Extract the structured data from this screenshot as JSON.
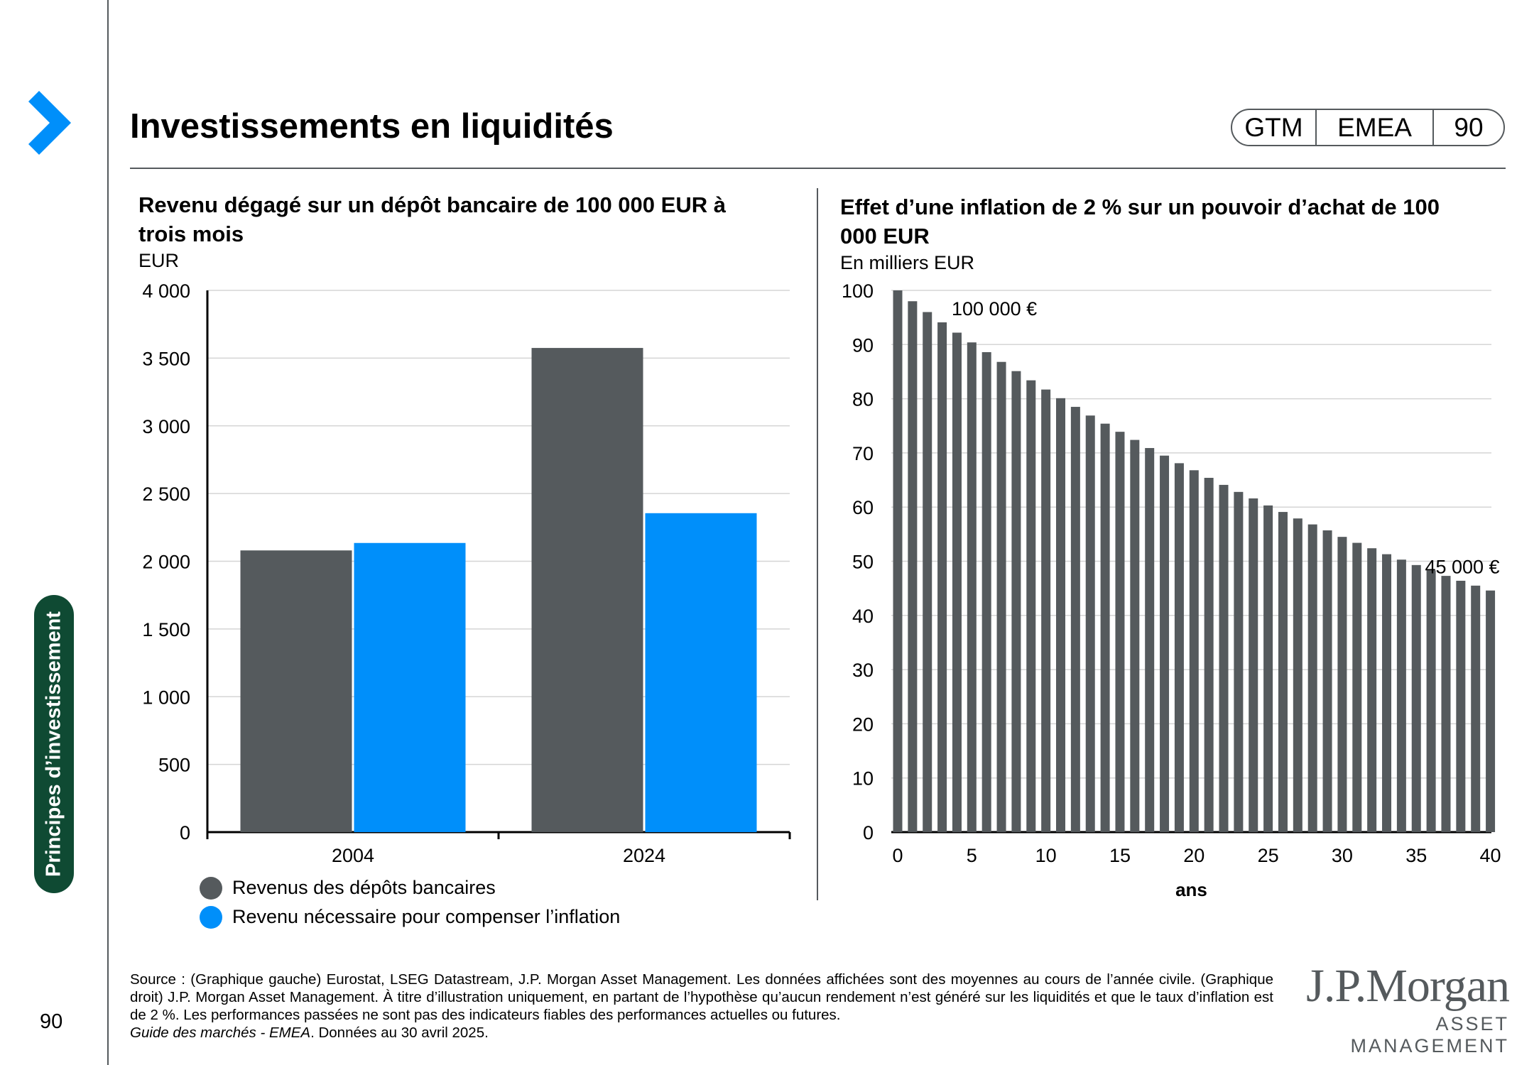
{
  "page": {
    "title": "Investissements en liquidités",
    "badge": [
      "GTM",
      "EMEA",
      "90"
    ],
    "side_tab": "Principes d’investissement",
    "page_number": "90"
  },
  "footnote": {
    "text": "Source : (Graphique gauche) Eurostat, LSEG Datastream, J.P. Morgan Asset Management. Les données affichées sont des moyennes au cours de l’année civile. (Graphique droit) J.P. Morgan Asset Management. À titre d’illustration uniquement, en partant de l’hypothèse qu’aucun rendement n’est généré sur les liquidités et que le taux d’inflation est de 2 %. Les performances passées ne sont pas des indicateurs fiables des performances actuelles ou futures.",
    "italic": "Guide des marchés - EMEA",
    "date": ". Données au 30 avril 2025."
  },
  "logo": {
    "main": "J.P.Morgan",
    "sub": "ASSET MANAGEMENT"
  },
  "colors": {
    "dark_gray": "#555a5d",
    "blue": "#008ffa",
    "green": "#0f4a33"
  },
  "chart_data": [
    {
      "type": "bar",
      "title": "Revenu dégagé sur un dépôt bancaire de 100 000 EUR à trois mois",
      "ylabel": "EUR",
      "xlabel": "",
      "categories": [
        "2004",
        "2024"
      ],
      "series": [
        {
          "name": "Revenus des dépôts bancaires",
          "color": "#555a5d",
          "values": [
            2080,
            3575
          ]
        },
        {
          "name": "Revenu nécessaire pour compenser l’inflation",
          "color": "#008ffa",
          "values": [
            2135,
            2355
          ]
        }
      ],
      "ylim": [
        0,
        4000
      ],
      "yticks": [
        0,
        500,
        1000,
        1500,
        2000,
        2500,
        3000,
        3500,
        4000
      ],
      "ytick_labels": [
        "0",
        "500",
        "1 000",
        "1 500",
        "2 000",
        "2 500",
        "3 000",
        "3 500",
        "4 000"
      ],
      "legend": "bottom-left",
      "grid": true
    },
    {
      "type": "bar",
      "title": "Effet d’une inflation de 2 % sur un pouvoir d’achat de 100 000 EUR",
      "ylabel": "En milliers EUR",
      "xlabel": "ans",
      "x": [
        0,
        1,
        2,
        3,
        4,
        5,
        6,
        7,
        8,
        9,
        10,
        11,
        12,
        13,
        14,
        15,
        16,
        17,
        18,
        19,
        20,
        21,
        22,
        23,
        24,
        25,
        26,
        27,
        28,
        29,
        30,
        31,
        32,
        33,
        34,
        35,
        36,
        37,
        38,
        39,
        40
      ],
      "values": [
        100,
        98.0,
        96.0,
        94.1,
        92.2,
        90.4,
        88.6,
        86.8,
        85.1,
        83.4,
        81.7,
        80.1,
        78.5,
        76.9,
        75.4,
        73.9,
        72.4,
        70.9,
        69.5,
        68.1,
        66.8,
        65.4,
        64.1,
        62.8,
        61.6,
        60.3,
        59.1,
        57.9,
        56.8,
        55.7,
        54.5,
        53.4,
        52.4,
        51.3,
        50.3,
        49.3,
        48.3,
        47.3,
        46.4,
        45.5,
        44.6
      ],
      "color": "#555a5d",
      "ylim": [
        0,
        100
      ],
      "yticks": [
        0,
        10,
        20,
        30,
        40,
        50,
        60,
        70,
        80,
        90,
        100
      ],
      "xticks": [
        0,
        5,
        10,
        15,
        20,
        25,
        30,
        35,
        40
      ],
      "annotations": [
        {
          "label": "100 000 €",
          "x": 0
        },
        {
          "label": "45 000 €",
          "x": 40
        }
      ],
      "grid": true
    }
  ]
}
